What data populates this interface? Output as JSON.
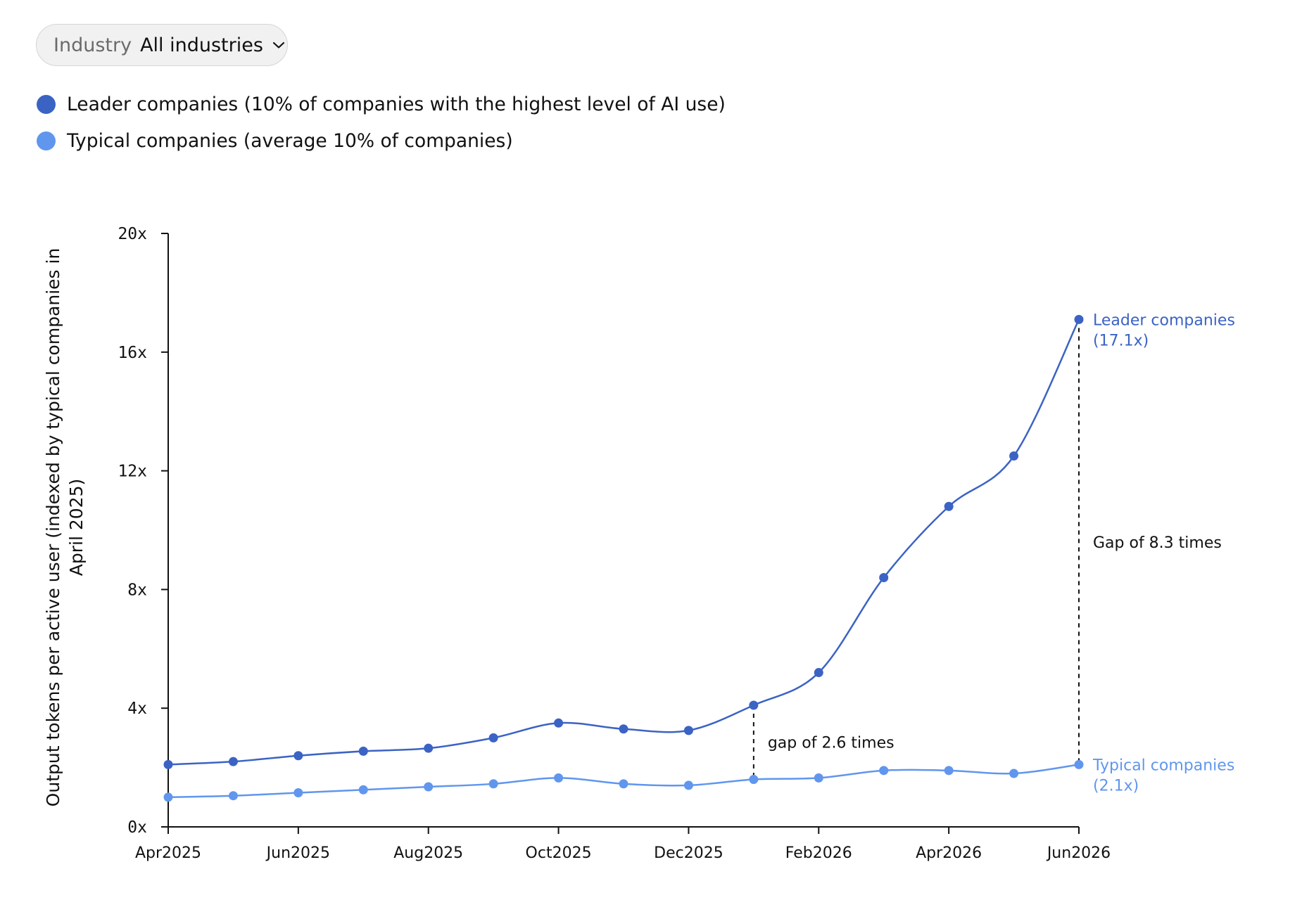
{
  "filter": {
    "label": "Industry",
    "value": "All industries",
    "icon": "chevron-down-icon"
  },
  "legend": [
    {
      "label": "Leader companies (10% of companies with the highest level of AI use)",
      "color": "#3B63C4"
    },
    {
      "label": "Typical companies (average 10% of companies)",
      "color": "#6096EE"
    }
  ],
  "chart_data": {
    "type": "line",
    "xlabel": "",
    "ylabel_lines": [
      "Output tokens per active user (indexed by typical companies in",
      "April 2025)"
    ],
    "x_ticks": [
      "Apr2025",
      "Jun2025",
      "Aug2025",
      "Oct2025",
      "Dec2025",
      "Feb2026",
      "Apr2026",
      "Jun2026"
    ],
    "y_ticks": [
      "0x",
      "4x",
      "8x",
      "12x",
      "16x",
      "20x"
    ],
    "ylim": [
      0,
      20
    ],
    "x": [
      "2025-04",
      "2025-05",
      "2025-06",
      "2025-07",
      "2025-08",
      "2025-09",
      "2025-10",
      "2025-11",
      "2025-12",
      "2026-01",
      "2026-02",
      "2026-03",
      "2026-04",
      "2026-05",
      "2026-06"
    ],
    "series": [
      {
        "name": "Leader companies",
        "color": "#3B63C4",
        "values": [
          2.1,
          2.2,
          2.4,
          2.55,
          2.65,
          3.0,
          3.5,
          3.3,
          3.25,
          4.1,
          5.2,
          8.4,
          10.8,
          12.5,
          17.1
        ],
        "end_label": [
          "Leader companies",
          "(17.1x)"
        ]
      },
      {
        "name": "Typical companies",
        "color": "#6096EE",
        "values": [
          1.0,
          1.05,
          1.15,
          1.25,
          1.35,
          1.45,
          1.65,
          1.45,
          1.4,
          1.6,
          1.65,
          1.9,
          1.9,
          1.8,
          2.1
        ],
        "end_label": [
          "Typical companies",
          "(2.1x)"
        ]
      }
    ],
    "annotations": [
      {
        "text": "gap of 2.6 times",
        "x": "2026-01"
      },
      {
        "text": "Gap of 8.3 times",
        "x": "2026-06"
      }
    ],
    "grid": false,
    "legend_position": "top-left"
  }
}
